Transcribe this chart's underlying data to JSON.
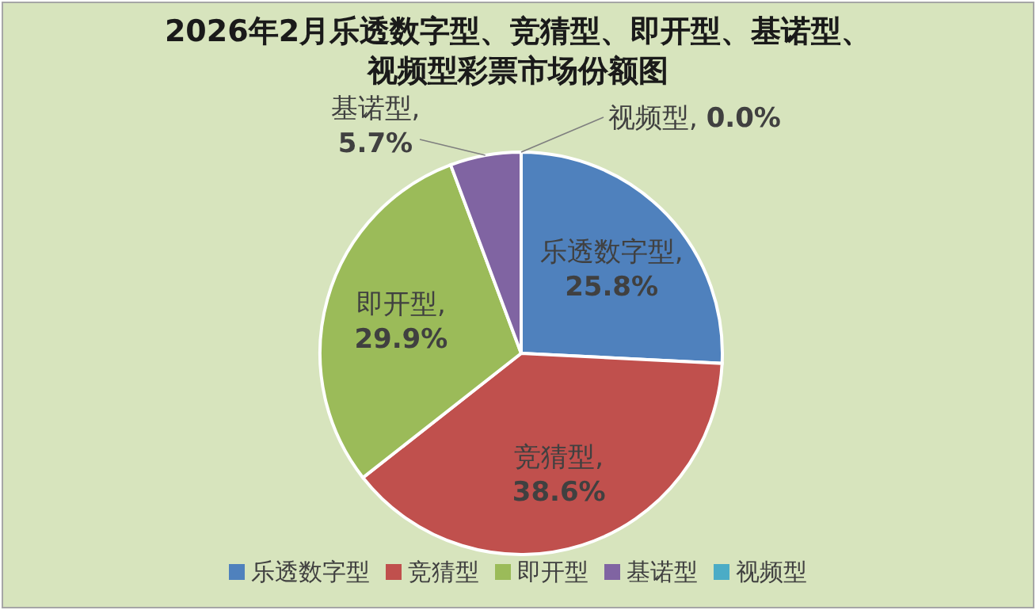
{
  "chart_data": {
    "type": "pie",
    "title": "2026年2月乐透数字型、竞猜型、即开型、基诺型、视频型彩票市场份额图",
    "categories": [
      "乐透数字型",
      "竞猜型",
      "即开型",
      "基诺型",
      "视频型"
    ],
    "values": [
      25.8,
      38.6,
      29.9,
      5.7,
      0.0
    ],
    "colors": [
      "#4f81bd",
      "#c0504d",
      "#9bbb59",
      "#8064a2",
      "#4bacc6"
    ],
    "value_labels": [
      "乐透数字型,\n25.8%",
      "竞猜型,\n38.6%",
      "即开型,\n29.9%",
      "基诺型,\n5.7%",
      "视频型, 0.0%"
    ],
    "legend": "bottom"
  }
}
